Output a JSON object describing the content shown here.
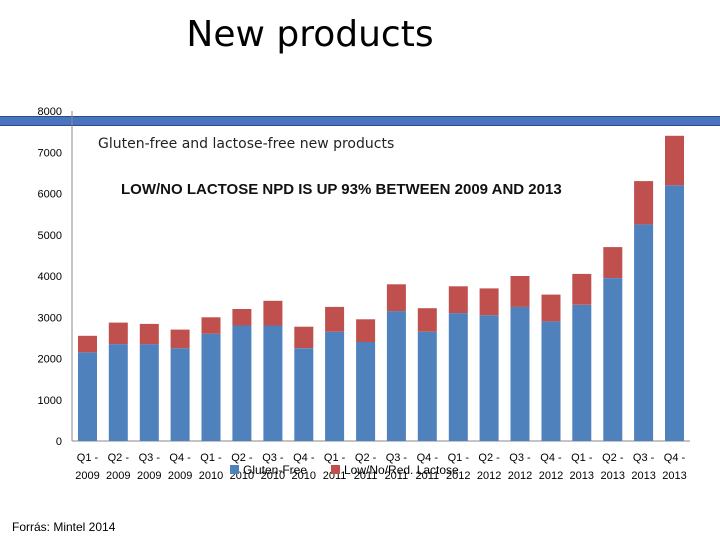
{
  "page": {
    "title": "New products",
    "source": "Forrás: Mintel 2014"
  },
  "chart_data": {
    "type": "bar",
    "stacked": true,
    "title": "Gluten-free and lactose-free new products",
    "subtitle": "LOW/NO LACTOSE NPD IS UP 93% BETWEEN 2009 AND 2013",
    "xlabel": "",
    "ylabel": "",
    "ylim": [
      0,
      8000
    ],
    "yticks": [
      0,
      1000,
      2000,
      3000,
      4000,
      5000,
      6000,
      7000,
      8000
    ],
    "legend_position": "bottom",
    "categories": [
      [
        "Q1 -",
        "2009"
      ],
      [
        "Q2 -",
        "2009"
      ],
      [
        "Q3 -",
        "2009"
      ],
      [
        "Q4 -",
        "2009"
      ],
      [
        "Q1 -",
        "2010"
      ],
      [
        "Q2 -",
        "2010"
      ],
      [
        "Q3 -",
        "2010"
      ],
      [
        "Q4 -",
        "2010"
      ],
      [
        "Q1 -",
        "2011"
      ],
      [
        "Q2 -",
        "2011"
      ],
      [
        "Q3 -",
        "2011"
      ],
      [
        "Q4 -",
        "2011"
      ],
      [
        "Q1 -",
        "2012"
      ],
      [
        "Q2 -",
        "2012"
      ],
      [
        "Q3 -",
        "2012"
      ],
      [
        "Q4 -",
        "2012"
      ],
      [
        "Q1 -",
        "2013"
      ],
      [
        "Q2 -",
        "2013"
      ],
      [
        "Q3 -",
        "2013"
      ],
      [
        "Q4 -",
        "2013"
      ]
    ],
    "series": [
      {
        "name": "Gluten-Free",
        "color": "#4f81bd",
        "values": [
          2150,
          2350,
          2350,
          2250,
          2600,
          2800,
          2800,
          2250,
          2650,
          2400,
          3150,
          2650,
          3100,
          3050,
          3250,
          2900,
          3300,
          3950,
          5250,
          6200
        ]
      },
      {
        "name": "Low/No/Red. Lactose",
        "color": "#c0504d",
        "values": [
          400,
          520,
          490,
          450,
          400,
          400,
          600,
          520,
          600,
          550,
          650,
          570,
          650,
          650,
          750,
          650,
          750,
          750,
          1050,
          1200
        ]
      }
    ]
  }
}
